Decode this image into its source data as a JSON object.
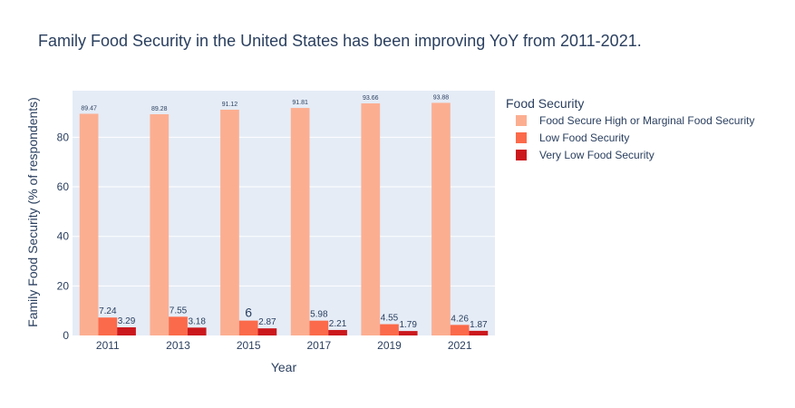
{
  "chart_data": {
    "type": "bar",
    "title": "Family Food Security in the United States has been improving YoY from 2011-2021.",
    "xlabel": "Year",
    "ylabel": "Family Food Security (% of respondents)",
    "categories": [
      "2011",
      "2013",
      "2015",
      "2017",
      "2019",
      "2021"
    ],
    "ylim": [
      0,
      98.8
    ],
    "yticks": [
      0,
      20,
      40,
      60,
      80
    ],
    "grid": true,
    "legend_title": "Food Security",
    "legend_position": "top-right",
    "series": [
      {
        "name": "Food Secure High or Marginal Food Security",
        "color": "#fcae91",
        "values": [
          89.47,
          89.28,
          91.12,
          91.81,
          93.66,
          93.88
        ],
        "labels": [
          "89.47",
          "89.28",
          "91.12",
          "91.81",
          "93.66",
          "93.88"
        ]
      },
      {
        "name": "Low Food Security",
        "color": "#fb6a4a",
        "values": [
          7.24,
          7.55,
          6,
          5.98,
          4.55,
          4.26
        ],
        "labels": [
          "7.24",
          "7.55",
          "6",
          "5.98",
          "4.55",
          "4.26"
        ]
      },
      {
        "name": "Very Low Food Security",
        "color": "#cb181d",
        "values": [
          3.29,
          3.18,
          2.87,
          2.21,
          1.79,
          1.87
        ],
        "labels": [
          "3.29",
          "3.18",
          "2.87",
          "2.21",
          "1.79",
          "1.87"
        ]
      }
    ]
  }
}
